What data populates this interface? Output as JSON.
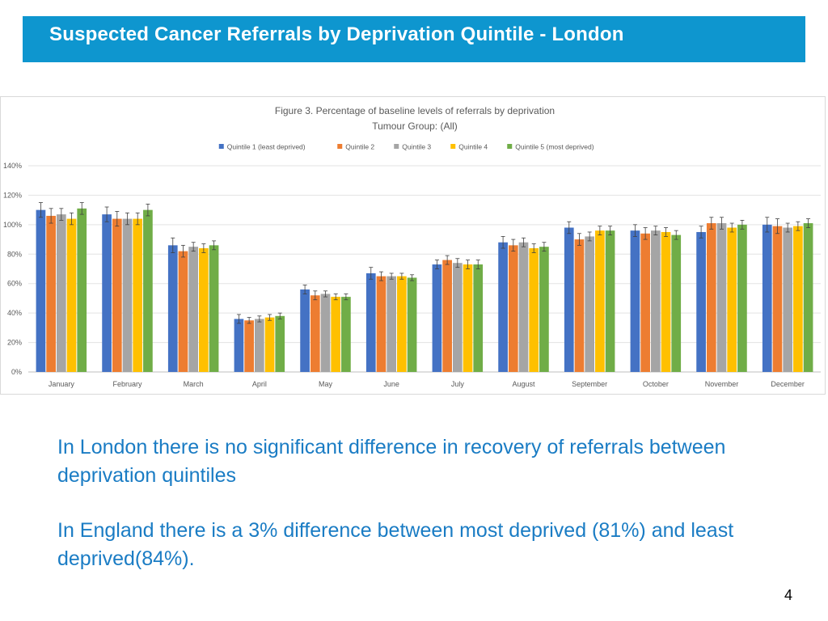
{
  "header": {
    "title": "Suspected Cancer Referrals by Deprivation Quintile - London"
  },
  "chart_data": {
    "type": "bar",
    "title": "Figure 3. Percentage of baseline levels of referrals by deprivation",
    "subtitle": "Tumour Group: (All)",
    "xlabel": "",
    "ylabel": "",
    "ylim": [
      0,
      140
    ],
    "yticks": [
      0,
      20,
      40,
      60,
      80,
      100,
      120,
      140
    ],
    "ytick_labels": [
      "0%",
      "20%",
      "40%",
      "60%",
      "80%",
      "100%",
      "120%",
      "140%"
    ],
    "grid": true,
    "legend_position": "top",
    "error_bars": true,
    "categories": [
      "January",
      "February",
      "March",
      "April",
      "May",
      "June",
      "July",
      "August",
      "September",
      "October",
      "November",
      "December"
    ],
    "series": [
      {
        "name": "Quintile 1 (least deprived)",
        "color": "#4472c4",
        "values": [
          110,
          107,
          86,
          36,
          56,
          67,
          73,
          88,
          98,
          96,
          95,
          100
        ],
        "errors": [
          5,
          5,
          5,
          3,
          3,
          4,
          3,
          4,
          4,
          4,
          4,
          5
        ]
      },
      {
        "name": "Quintile 2",
        "color": "#ed7d31",
        "values": [
          106,
          104,
          82,
          35,
          52,
          65,
          76,
          86,
          90,
          94,
          101,
          99
        ],
        "errors": [
          5,
          5,
          4,
          2,
          3,
          3,
          3,
          4,
          4,
          4,
          4,
          5
        ]
      },
      {
        "name": "Quintile 3",
        "color": "#a5a5a5",
        "values": [
          107,
          104,
          85,
          36,
          53,
          65,
          74,
          88,
          92,
          96,
          101,
          98
        ],
        "errors": [
          4,
          4,
          3,
          2,
          2,
          2,
          3,
          3,
          3,
          3,
          4,
          3
        ]
      },
      {
        "name": "Quintile 4",
        "color": "#ffc000",
        "values": [
          104,
          104,
          84,
          37,
          51,
          65,
          73,
          84,
          96,
          95,
          98,
          99
        ],
        "errors": [
          4,
          4,
          3,
          2,
          2,
          2,
          3,
          3,
          3,
          3,
          3,
          3
        ]
      },
      {
        "name": "Quintile 5 (most deprived)",
        "color": "#70ad47",
        "values": [
          111,
          110,
          86,
          38,
          51,
          64,
          73,
          85,
          96,
          93,
          100,
          101
        ],
        "errors": [
          4,
          4,
          3,
          2,
          2,
          2,
          3,
          3,
          3,
          3,
          3,
          3
        ]
      }
    ]
  },
  "content": {
    "paragraph1": "In London there is no significant difference in recovery of referrals between deprivation quintiles",
    "paragraph2": "In England there is a 3% difference between most deprived (81%) and least deprived(84%)."
  },
  "footer": {
    "page_number": "4"
  }
}
